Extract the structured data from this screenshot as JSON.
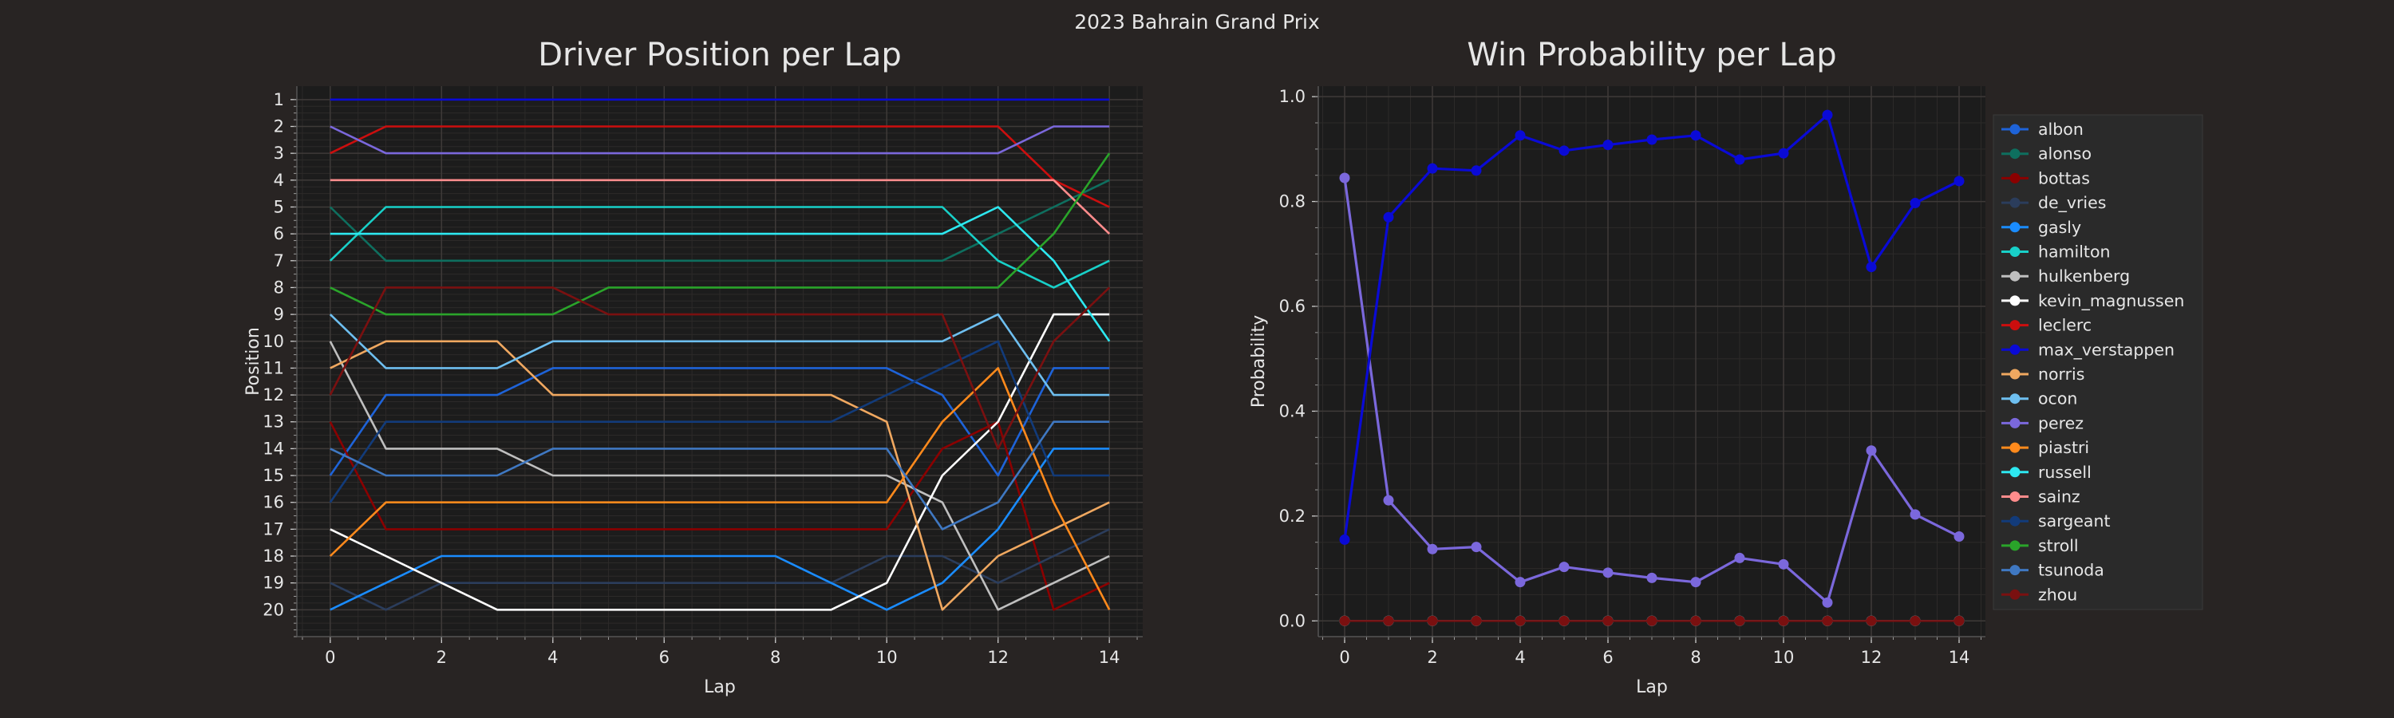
{
  "suptitle": "2023 Bahrain Grand Prix",
  "colors": {
    "background": "#282423",
    "panel": "#1c1c1c",
    "grid_major": "#3e3a38",
    "grid_minor": "#2c2a29",
    "text": "#e6e6e6",
    "legend_bg": "#2a2a2a"
  },
  "chart_data": [
    {
      "type": "line",
      "title": "Driver Position per Lap",
      "xlabel": "Lap",
      "ylabel": "Position",
      "x": [
        0,
        1,
        2,
        3,
        4,
        5,
        6,
        7,
        8,
        9,
        10,
        11,
        12,
        13,
        14
      ],
      "xlim": [
        -0.6,
        14.6
      ],
      "xticks": [
        0,
        2,
        4,
        6,
        8,
        10,
        12,
        14
      ],
      "ylim": [
        21.0,
        0.5
      ],
      "yticks": [
        1,
        2,
        3,
        4,
        5,
        6,
        7,
        8,
        9,
        10,
        11,
        12,
        13,
        14,
        15,
        16,
        17,
        18,
        19,
        20
      ],
      "y_inverted": true,
      "grid": true,
      "series": [
        {
          "name": "albon",
          "color": "#1e63d8",
          "values": [
            15,
            12,
            12,
            12,
            11,
            11,
            11,
            11,
            11,
            11,
            11,
            12,
            15,
            11,
            11
          ]
        },
        {
          "name": "alonso",
          "color": "#0e6f5f",
          "values": [
            5,
            7,
            7,
            7,
            7,
            7,
            7,
            7,
            7,
            7,
            7,
            7,
            6,
            5,
            4
          ]
        },
        {
          "name": "bottas",
          "color": "#8b0000",
          "values": [
            13,
            17,
            17,
            17,
            17,
            17,
            17,
            17,
            17,
            17,
            17,
            14,
            13,
            20,
            19
          ]
        },
        {
          "name": "de_vries",
          "color": "#2b3d5c",
          "values": [
            19,
            20,
            19,
            19,
            19,
            19,
            19,
            19,
            19,
            19,
            18,
            18,
            19,
            18,
            17
          ]
        },
        {
          "name": "gasly",
          "color": "#1a8cff",
          "values": [
            20,
            19,
            18,
            18,
            18,
            18,
            18,
            18,
            18,
            19,
            20,
            19,
            17,
            14,
            14
          ]
        },
        {
          "name": "hamilton",
          "color": "#18d0c8",
          "values": [
            7,
            5,
            5,
            5,
            5,
            5,
            5,
            5,
            5,
            5,
            5,
            5,
            7,
            8,
            7
          ]
        },
        {
          "name": "hulkenberg",
          "color": "#bfbfbf",
          "values": [
            10,
            14,
            14,
            14,
            15,
            15,
            15,
            15,
            15,
            15,
            15,
            16,
            20,
            19,
            18
          ]
        },
        {
          "name": "kevin_magnussen",
          "color": "#ffffff",
          "values": [
            17,
            18,
            19,
            20,
            20,
            20,
            20,
            20,
            20,
            20,
            19,
            15,
            13,
            9,
            9
          ]
        },
        {
          "name": "leclerc",
          "color": "#cc0e0e",
          "values": [
            3,
            2,
            2,
            2,
            2,
            2,
            2,
            2,
            2,
            2,
            2,
            2,
            2,
            4,
            5
          ]
        },
        {
          "name": "max_verstappen",
          "color": "#0a0ad6",
          "values": [
            1,
            1,
            1,
            1,
            1,
            1,
            1,
            1,
            1,
            1,
            1,
            1,
            1,
            1,
            1
          ]
        },
        {
          "name": "norris",
          "color": "#f0a860",
          "values": [
            11,
            10,
            10,
            10,
            12,
            12,
            12,
            12,
            12,
            12,
            13,
            20,
            18,
            17,
            16
          ]
        },
        {
          "name": "ocon",
          "color": "#6ebff0",
          "values": [
            9,
            11,
            11,
            11,
            10,
            10,
            10,
            10,
            10,
            10,
            10,
            10,
            9,
            12,
            12
          ]
        },
        {
          "name": "perez",
          "color": "#7b68dc",
          "values": [
            2,
            3,
            3,
            3,
            3,
            3,
            3,
            3,
            3,
            3,
            3,
            3,
            3,
            2,
            2
          ]
        },
        {
          "name": "piastri",
          "color": "#ff8a1c",
          "values": [
            18,
            16,
            16,
            16,
            16,
            16,
            16,
            16,
            16,
            16,
            16,
            13,
            11,
            16,
            20
          ]
        },
        {
          "name": "russell",
          "color": "#2de8f0",
          "values": [
            6,
            6,
            6,
            6,
            6,
            6,
            6,
            6,
            6,
            6,
            6,
            6,
            5,
            7,
            10
          ]
        },
        {
          "name": "sainz",
          "color": "#ff8c8c",
          "values": [
            4,
            4,
            4,
            4,
            4,
            4,
            4,
            4,
            4,
            4,
            4,
            4,
            4,
            4,
            6
          ]
        },
        {
          "name": "sargeant",
          "color": "#123b7a",
          "values": [
            16,
            13,
            13,
            13,
            13,
            13,
            13,
            13,
            13,
            13,
            12,
            11,
            10,
            15,
            15
          ]
        },
        {
          "name": "stroll",
          "color": "#2aa42a",
          "values": [
            8,
            9,
            9,
            9,
            9,
            8,
            8,
            8,
            8,
            8,
            8,
            8,
            8,
            6,
            3
          ]
        },
        {
          "name": "tsunoda",
          "color": "#3f78c2",
          "values": [
            14,
            15,
            15,
            15,
            14,
            14,
            14,
            14,
            14,
            14,
            14,
            17,
            16,
            13,
            13
          ]
        },
        {
          "name": "zhou",
          "color": "#7a1010",
          "values": [
            12,
            8,
            8,
            8,
            8,
            9,
            9,
            9,
            9,
            9,
            9,
            9,
            14,
            10,
            8
          ]
        }
      ]
    },
    {
      "type": "line",
      "title": "Win Probability per Lap",
      "xlabel": "Lap",
      "ylabel": "Probability",
      "x": [
        0,
        1,
        2,
        3,
        4,
        5,
        6,
        7,
        8,
        9,
        10,
        11,
        12,
        13,
        14
      ],
      "xlim": [
        -0.6,
        14.6
      ],
      "xticks": [
        0,
        2,
        4,
        6,
        8,
        10,
        12,
        14
      ],
      "ylim": [
        -0.03,
        1.02
      ],
      "yticks": [
        0.0,
        0.2,
        0.4,
        0.6,
        0.8,
        1.0
      ],
      "ytick_labels": [
        "0.0",
        "0.2",
        "0.4",
        "0.6",
        "0.8",
        "1.0"
      ],
      "grid": true,
      "markers": "circle",
      "legend_placement": "right-outside",
      "series": [
        {
          "name": "albon",
          "color": "#1e63d8",
          "values": [
            0,
            0,
            0,
            0,
            0,
            0,
            0,
            0,
            0,
            0,
            0,
            0,
            0,
            0,
            0
          ]
        },
        {
          "name": "alonso",
          "color": "#0e6f5f",
          "values": [
            0,
            0,
            0,
            0,
            0,
            0,
            0,
            0,
            0,
            0,
            0,
            0,
            0,
            0,
            0
          ]
        },
        {
          "name": "bottas",
          "color": "#8b0000",
          "values": [
            0,
            0,
            0,
            0,
            0,
            0,
            0,
            0,
            0,
            0,
            0,
            0,
            0,
            0,
            0
          ]
        },
        {
          "name": "de_vries",
          "color": "#2b3d5c",
          "values": [
            0,
            0,
            0,
            0,
            0,
            0,
            0,
            0,
            0,
            0,
            0,
            0,
            0,
            0,
            0
          ]
        },
        {
          "name": "gasly",
          "color": "#1a8cff",
          "values": [
            0,
            0,
            0,
            0,
            0,
            0,
            0,
            0,
            0,
            0,
            0,
            0,
            0,
            0,
            0
          ]
        },
        {
          "name": "hamilton",
          "color": "#18d0c8",
          "values": [
            0,
            0,
            0,
            0,
            0,
            0,
            0,
            0,
            0,
            0,
            0,
            0,
            0,
            0,
            0
          ]
        },
        {
          "name": "hulkenberg",
          "color": "#bfbfbf",
          "values": [
            0,
            0,
            0,
            0,
            0,
            0,
            0,
            0,
            0,
            0,
            0,
            0,
            0,
            0,
            0
          ]
        },
        {
          "name": "kevin_magnussen",
          "color": "#ffffff",
          "values": [
            0,
            0,
            0,
            0,
            0,
            0,
            0,
            0,
            0,
            0,
            0,
            0,
            0,
            0,
            0
          ]
        },
        {
          "name": "leclerc",
          "color": "#cc0e0e",
          "values": [
            0,
            0,
            0,
            0,
            0,
            0,
            0,
            0,
            0,
            0,
            0,
            0,
            0,
            0,
            0
          ]
        },
        {
          "name": "norris",
          "color": "#f0a860",
          "values": [
            0,
            0,
            0,
            0,
            0,
            0,
            0,
            0,
            0,
            0,
            0,
            0,
            0,
            0,
            0
          ]
        },
        {
          "name": "ocon",
          "color": "#6ebff0",
          "values": [
            0,
            0,
            0,
            0,
            0,
            0,
            0,
            0,
            0,
            0,
            0,
            0,
            0,
            0,
            0
          ]
        },
        {
          "name": "piastri",
          "color": "#ff8a1c",
          "values": [
            0,
            0,
            0,
            0,
            0,
            0,
            0,
            0,
            0,
            0,
            0,
            0,
            0,
            0,
            0
          ]
        },
        {
          "name": "russell",
          "color": "#2de8f0",
          "values": [
            0,
            0,
            0,
            0,
            0,
            0,
            0,
            0,
            0,
            0,
            0,
            0,
            0,
            0,
            0
          ]
        },
        {
          "name": "sainz",
          "color": "#ff8c8c",
          "values": [
            0,
            0,
            0,
            0,
            0,
            0,
            0,
            0,
            0,
            0,
            0,
            0,
            0,
            0,
            0
          ]
        },
        {
          "name": "sargeant",
          "color": "#123b7a",
          "values": [
            0,
            0,
            0,
            0,
            0,
            0,
            0,
            0,
            0,
            0,
            0,
            0,
            0,
            0,
            0
          ]
        },
        {
          "name": "stroll",
          "color": "#2aa42a",
          "values": [
            0,
            0,
            0,
            0,
            0,
            0,
            0,
            0,
            0,
            0,
            0,
            0,
            0,
            0,
            0
          ]
        },
        {
          "name": "tsunoda",
          "color": "#3f78c2",
          "values": [
            0,
            0,
            0,
            0,
            0,
            0,
            0,
            0,
            0,
            0,
            0,
            0,
            0,
            0,
            0
          ]
        },
        {
          "name": "zhou",
          "color": "#7a1010",
          "values": [
            0,
            0,
            0,
            0,
            0,
            0,
            0,
            0,
            0,
            0,
            0,
            0,
            0,
            0,
            0
          ]
        },
        {
          "name": "perez",
          "color": "#7b68dc",
          "values": [
            0.845,
            0.23,
            0.137,
            0.141,
            0.074,
            0.103,
            0.092,
            0.082,
            0.074,
            0.12,
            0.108,
            0.035,
            0.325,
            0.203,
            0.161
          ]
        },
        {
          "name": "max_verstappen",
          "color": "#0a0ad6",
          "values": [
            0.155,
            0.77,
            0.863,
            0.859,
            0.926,
            0.897,
            0.908,
            0.918,
            0.926,
            0.88,
            0.892,
            0.965,
            0.675,
            0.797,
            0.839
          ]
        }
      ],
      "legend": [
        "albon",
        "alonso",
        "bottas",
        "de_vries",
        "gasly",
        "hamilton",
        "hulkenberg",
        "kevin_magnussen",
        "leclerc",
        "max_verstappen",
        "norris",
        "ocon",
        "perez",
        "piastri",
        "russell",
        "sainz",
        "sargeant",
        "stroll",
        "tsunoda",
        "zhou"
      ]
    }
  ]
}
